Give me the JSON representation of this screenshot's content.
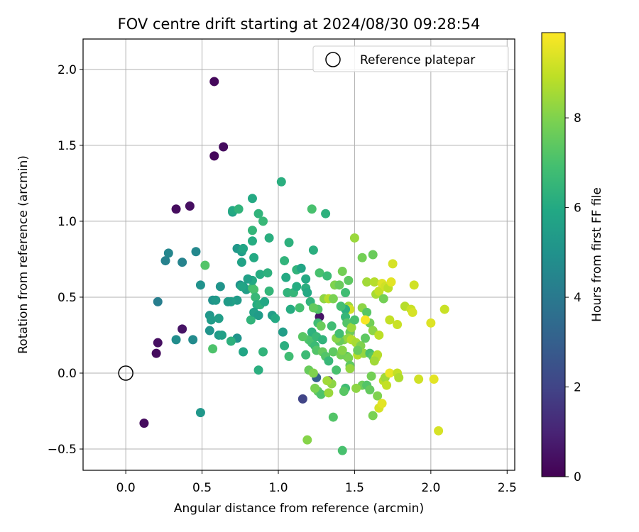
{
  "chart_data": {
    "type": "scatter",
    "title": "FOV centre drift starting at 2024/08/30 09:28:54",
    "xlabel": "Angular distance from reference (arcmin)",
    "ylabel": "Rotation from reference (arcmin)",
    "xlim": [
      -0.28,
      2.55
    ],
    "ylim": [
      -0.64,
      2.2
    ],
    "xticks": [
      0.0,
      0.5,
      1.0,
      1.5,
      2.0,
      2.5
    ],
    "xtick_labels": [
      "0.0",
      "0.5",
      "1.0",
      "1.5",
      "2.0",
      "2.5"
    ],
    "yticks": [
      -0.5,
      0.0,
      0.5,
      1.0,
      1.5,
      2.0
    ],
    "ytick_labels": [
      "−0.5",
      "0.0",
      "0.5",
      "1.0",
      "1.5",
      "2.0"
    ],
    "grid": true,
    "legend": {
      "position": "top-right",
      "entries": [
        "Reference platepar"
      ]
    },
    "reference_point": {
      "x": 0.0,
      "y": 0.0,
      "marker": "open-circle"
    },
    "colorbar": {
      "label": "Hours from first FF file",
      "range": [
        0,
        9.9
      ],
      "ticks": [
        0,
        2,
        4,
        6,
        8
      ],
      "tick_labels": [
        "0",
        "2",
        "4",
        "6",
        "8"
      ],
      "colormap": "viridis"
    },
    "points": [
      [
        0.58,
        1.92,
        0.2
      ],
      [
        0.64,
        1.49,
        0.3
      ],
      [
        0.58,
        1.43,
        0.2
      ],
      [
        0.33,
        1.08,
        0.3
      ],
      [
        0.42,
        1.1,
        0.4
      ],
      [
        0.21,
        0.2,
        0.4
      ],
      [
        0.2,
        0.13,
        0.3
      ],
      [
        0.12,
        -0.33,
        0.3
      ],
      [
        0.37,
        0.29,
        0.5
      ],
      [
        1.27,
        0.37,
        0.5
      ],
      [
        1.33,
        -0.05,
        1.0
      ],
      [
        1.16,
        -0.17,
        2.0
      ],
      [
        1.25,
        -0.03,
        3.0
      ],
      [
        0.21,
        0.47,
        4.2
      ],
      [
        0.26,
        0.74,
        4.3
      ],
      [
        0.28,
        0.79,
        4.5
      ],
      [
        0.37,
        0.73,
        4.4
      ],
      [
        0.46,
        0.8,
        4.6
      ],
      [
        0.33,
        0.22,
        4.8
      ],
      [
        0.44,
        0.22,
        4.7
      ],
      [
        0.49,
        0.58,
        5.0
      ],
      [
        0.55,
        0.28,
        5.1
      ],
      [
        0.55,
        0.38,
        5.2
      ],
      [
        0.56,
        0.35,
        5.4
      ],
      [
        0.57,
        0.48,
        5.0
      ],
      [
        0.59,
        0.48,
        5.3
      ],
      [
        0.61,
        0.36,
        5.5
      ],
      [
        0.61,
        0.25,
        5.3
      ],
      [
        0.62,
        0.57,
        5.1
      ],
      [
        0.49,
        -0.26,
        5.2
      ],
      [
        0.7,
        1.06,
        5.6
      ],
      [
        0.7,
        1.07,
        6.0
      ],
      [
        0.74,
        1.08,
        6.4
      ],
      [
        0.83,
        1.15,
        6.0
      ],
      [
        0.87,
        1.05,
        6.4
      ],
      [
        0.9,
        1.0,
        6.6
      ],
      [
        0.94,
        0.89,
        6.2
      ],
      [
        0.83,
        0.94,
        6.5
      ],
      [
        0.83,
        0.87,
        6.1
      ],
      [
        0.84,
        0.76,
        6.0
      ],
      [
        0.73,
        0.82,
        5.2
      ],
      [
        0.76,
        0.8,
        5.5
      ],
      [
        0.77,
        0.82,
        5.8
      ],
      [
        0.76,
        0.73,
        5.7
      ],
      [
        0.75,
        0.58,
        5.0
      ],
      [
        0.77,
        0.57,
        5.3
      ],
      [
        0.79,
        0.55,
        5.5
      ],
      [
        0.73,
        0.48,
        5.4
      ],
      [
        0.73,
        0.23,
        5.1
      ],
      [
        0.69,
        0.47,
        5.6
      ],
      [
        0.77,
        0.14,
        5.8
      ],
      [
        0.82,
        0.35,
        6.4
      ],
      [
        0.83,
        0.56,
        6.8
      ],
      [
        0.84,
        0.55,
        7.0
      ],
      [
        0.85,
        0.5,
        6.6
      ],
      [
        0.86,
        0.45,
        6.1
      ],
      [
        0.84,
        0.4,
        5.6
      ],
      [
        0.87,
        0.38,
        5.4
      ],
      [
        0.88,
        0.45,
        6.3
      ],
      [
        0.88,
        0.65,
        6.1
      ],
      [
        0.9,
        0.14,
        6.4
      ],
      [
        0.87,
        0.02,
        6.2
      ],
      [
        0.93,
        0.66,
        6.3
      ],
      [
        0.83,
        0.61,
        6.0
      ],
      [
        0.96,
        0.38,
        5.5
      ],
      [
        0.98,
        0.36,
        6.0
      ],
      [
        1.02,
        1.26,
        6.2
      ],
      [
        1.04,
        0.74,
        6.4
      ],
      [
        1.05,
        0.63,
        6.0
      ],
      [
        1.06,
        0.53,
        6.4
      ],
      [
        1.07,
        0.86,
        6.3
      ],
      [
        1.1,
        0.53,
        6.5
      ],
      [
        1.12,
        0.68,
        6.4
      ],
      [
        1.03,
        0.27,
        5.5
      ],
      [
        1.04,
        0.18,
        6.2
      ],
      [
        1.07,
        0.11,
        6.8
      ],
      [
        1.12,
        0.57,
        6.1
      ],
      [
        1.15,
        0.69,
        5.8
      ],
      [
        1.18,
        0.56,
        6.2
      ],
      [
        1.18,
        0.62,
        6.0
      ],
      [
        1.22,
        1.08,
        7.0
      ],
      [
        1.23,
        0.81,
        6.2
      ],
      [
        1.31,
        1.05,
        6.3
      ],
      [
        1.27,
        0.66,
        7.0
      ],
      [
        1.32,
        0.64,
        6.7
      ],
      [
        1.2,
        0.22,
        7.1
      ],
      [
        1.22,
        0.27,
        6.3
      ],
      [
        1.22,
        0.2,
        7.0
      ],
      [
        1.24,
        0.18,
        6.7
      ],
      [
        1.26,
        0.33,
        6.8
      ],
      [
        1.26,
        0.42,
        7.2
      ],
      [
        1.28,
        0.31,
        7.6
      ],
      [
        1.25,
        0.15,
        7.2
      ],
      [
        1.25,
        0.24,
        6.6
      ],
      [
        1.29,
        0.14,
        7.5
      ],
      [
        1.31,
        0.11,
        7.2
      ],
      [
        1.33,
        0.08,
        6.6
      ],
      [
        1.35,
        0.31,
        6.8
      ],
      [
        1.36,
        0.14,
        7.4
      ],
      [
        1.3,
        0.49,
        8.2
      ],
      [
        1.33,
        0.49,
        8.8
      ],
      [
        1.37,
        0.58,
        8.0
      ],
      [
        1.4,
        0.58,
        7.6
      ],
      [
        1.42,
        0.67,
        7.8
      ],
      [
        1.44,
        0.53,
        6.8
      ],
      [
        1.46,
        0.61,
        7.4
      ],
      [
        1.46,
        0.44,
        8.4
      ],
      [
        1.47,
        0.42,
        9.2
      ],
      [
        1.44,
        0.42,
        6.2
      ],
      [
        1.44,
        0.37,
        6.5
      ],
      [
        1.45,
        0.33,
        7.2
      ],
      [
        1.47,
        0.27,
        7.7
      ],
      [
        1.48,
        0.3,
        8.4
      ],
      [
        1.43,
        0.22,
        8.0
      ],
      [
        1.46,
        0.23,
        8.3
      ],
      [
        1.48,
        0.22,
        8.8
      ],
      [
        1.45,
        0.11,
        7.4
      ],
      [
        1.46,
        0.1,
        7.9
      ],
      [
        1.47,
        0.05,
        7.4
      ],
      [
        1.47,
        0.03,
        8.3
      ],
      [
        1.4,
        0.21,
        7.6
      ],
      [
        1.38,
        0.23,
        8.1
      ],
      [
        1.38,
        0.02,
        7.0
      ],
      [
        1.41,
        0.12,
        7.8
      ],
      [
        1.42,
        0.15,
        8.1
      ],
      [
        1.44,
        -0.1,
        6.8
      ],
      [
        1.43,
        -0.12,
        7.3
      ],
      [
        1.42,
        -0.51,
        7.0
      ],
      [
        1.36,
        -0.29,
        7.2
      ],
      [
        1.35,
        -0.07,
        8.2
      ],
      [
        1.26,
        -0.12,
        7.5
      ],
      [
        1.28,
        -0.14,
        7.1
      ],
      [
        1.33,
        -0.13,
        8.4
      ],
      [
        1.2,
        0.02,
        7.6
      ],
      [
        1.23,
        0.0,
        8.0
      ],
      [
        1.24,
        -0.1,
        7.9
      ],
      [
        1.19,
        -0.44,
        8.1
      ],
      [
        1.32,
        -0.05,
        8.5
      ],
      [
        1.5,
        0.89,
        8.4
      ],
      [
        1.55,
        0.76,
        7.8
      ],
      [
        1.62,
        0.78,
        7.6
      ],
      [
        1.55,
        0.43,
        8.2
      ],
      [
        1.58,
        0.4,
        7.3
      ],
      [
        1.6,
        0.33,
        7.8
      ],
      [
        1.62,
        0.28,
        8.2
      ],
      [
        1.57,
        0.35,
        9.8
      ],
      [
        1.58,
        0.6,
        8.5
      ],
      [
        1.63,
        0.6,
        8.8
      ],
      [
        1.64,
        0.52,
        8.6
      ],
      [
        1.66,
        0.54,
        9.0
      ],
      [
        1.68,
        0.59,
        9.4
      ],
      [
        1.7,
        0.57,
        9.2
      ],
      [
        1.72,
        0.56,
        8.9
      ],
      [
        1.74,
        0.6,
        9.5
      ],
      [
        1.75,
        0.72,
        9.3
      ],
      [
        1.69,
        0.49,
        7.8
      ],
      [
        1.5,
        0.35,
        7.0
      ],
      [
        1.51,
        0.2,
        8.6
      ],
      [
        1.52,
        0.12,
        8.8
      ],
      [
        1.54,
        0.18,
        8.0
      ],
      [
        1.56,
        0.13,
        8.3
      ],
      [
        1.6,
        0.13,
        7.0
      ],
      [
        1.62,
        0.11,
        7.3
      ],
      [
        1.64,
        0.1,
        9.0
      ],
      [
        1.65,
        0.12,
        8.8
      ],
      [
        1.63,
        0.08,
        8.5
      ],
      [
        1.66,
        0.25,
        8.9
      ],
      [
        1.55,
        -0.08,
        7.7
      ],
      [
        1.58,
        -0.08,
        7.2
      ],
      [
        1.6,
        -0.11,
        7.5
      ],
      [
        1.61,
        -0.02,
        7.8
      ],
      [
        1.65,
        -0.15,
        8.0
      ],
      [
        1.66,
        -0.23,
        9.3
      ],
      [
        1.68,
        -0.2,
        9.5
      ],
      [
        1.69,
        -0.05,
        8.9
      ],
      [
        1.7,
        -0.03,
        8.5
      ],
      [
        1.71,
        -0.08,
        9.0
      ],
      [
        1.73,
        0.0,
        9.6
      ],
      [
        1.51,
        -0.1,
        8.2
      ],
      [
        1.73,
        0.35,
        9.0
      ],
      [
        1.78,
        0.32,
        9.1
      ],
      [
        1.83,
        0.44,
        8.8
      ],
      [
        1.87,
        0.42,
        9.1
      ],
      [
        1.88,
        0.4,
        9.3
      ],
      [
        1.89,
        0.58,
        9.2
      ],
      [
        1.78,
        0.0,
        9.0
      ],
      [
        1.79,
        -0.03,
        8.7
      ],
      [
        1.92,
        -0.04,
        9.2
      ],
      [
        2.0,
        0.33,
        9.4
      ],
      [
        2.02,
        -0.04,
        9.5
      ],
      [
        2.05,
        -0.38,
        9.3
      ],
      [
        2.09,
        0.42,
        9.1
      ],
      [
        1.62,
        -0.28,
        7.9
      ],
      [
        0.63,
        0.25,
        5.6
      ],
      [
        0.67,
        0.47,
        5.4
      ],
      [
        0.52,
        0.71,
        7.2
      ],
      [
        0.57,
        0.16,
        7.1
      ],
      [
        0.69,
        0.21,
        6.3
      ],
      [
        0.76,
        0.57,
        5.8
      ],
      [
        0.8,
        0.62,
        5.6
      ],
      [
        0.91,
        0.47,
        5.9
      ],
      [
        0.94,
        0.54,
        6.5
      ],
      [
        1.08,
        0.42,
        6.1
      ],
      [
        1.14,
        0.43,
        6.9
      ],
      [
        1.19,
        0.53,
        6.0
      ],
      [
        1.21,
        0.47,
        6.4
      ],
      [
        1.23,
        0.43,
        7.5
      ],
      [
        1.29,
        0.22,
        6.4
      ],
      [
        1.4,
        0.26,
        6.9
      ],
      [
        1.16,
        0.24,
        7.3
      ],
      [
        1.18,
        0.12,
        6.7
      ],
      [
        1.36,
        0.49,
        7.9
      ],
      [
        1.41,
        0.44,
        6.9
      ],
      [
        1.52,
        0.15,
        7.6
      ],
      [
        1.57,
        0.23,
        7.4
      ]
    ]
  }
}
